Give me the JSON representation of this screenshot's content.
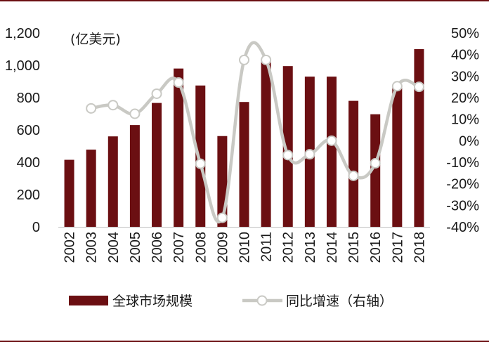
{
  "chart_data": {
    "type": "bar",
    "unit_label": "(亿美元)",
    "categories": [
      "2002",
      "2003",
      "2004",
      "2005",
      "2006",
      "2007",
      "2008",
      "2009",
      "2010",
      "2011",
      "2012",
      "2013",
      "2014",
      "2015",
      "2016",
      "2017",
      "2018"
    ],
    "series": [
      {
        "name": "全球市场规模",
        "type": "bar",
        "axis": "left",
        "color": "#6b0f12",
        "values": [
          415,
          478,
          560,
          630,
          767,
          980,
          875,
          562,
          773,
          1040,
          995,
          930,
          930,
          780,
          697,
          860,
          1100
        ]
      },
      {
        "name": "同比增速（右轴）",
        "type": "line",
        "axis": "right",
        "color": "#c9c9c4",
        "values": [
          null,
          15,
          16.5,
          12.5,
          21.8,
          27,
          -10.7,
          -35.8,
          37.5,
          37.5,
          -6.7,
          -6.3,
          0,
          -16.3,
          -10.5,
          25.3,
          25
        ]
      }
    ],
    "y_left": {
      "min": 0,
      "max": 1200,
      "step": 200,
      "tick_labels": [
        "0",
        "200",
        "400",
        "600",
        "800",
        "1,000",
        "1,200"
      ]
    },
    "y_right": {
      "min": -40,
      "max": 50,
      "step": 10,
      "tick_labels": [
        "-40%",
        "-30%",
        "-20%",
        "-10%",
        "0%",
        "10%",
        "20%",
        "30%",
        "40%",
        "50%"
      ]
    },
    "grid": false,
    "legend_position": "bottom"
  }
}
